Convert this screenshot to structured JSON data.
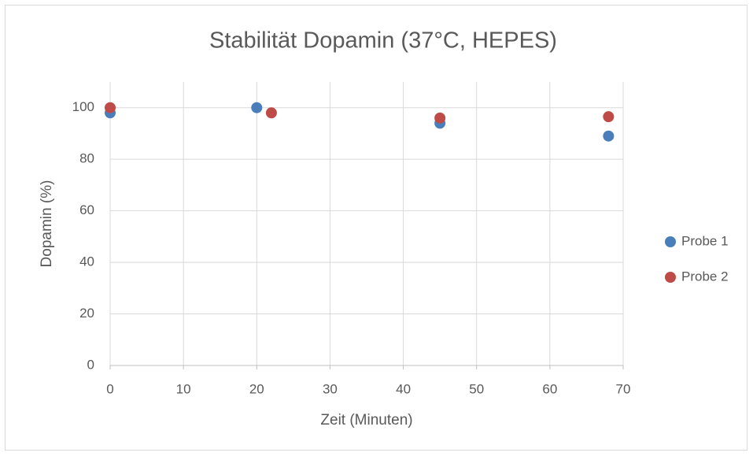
{
  "chart_data": {
    "type": "scatter",
    "title": "Stabilität Dopamin (37°C, HEPES)",
    "x_label": "Zeit (Minuten)",
    "y_label": "Dopamin (%)",
    "xlim": [
      0,
      70
    ],
    "xticks": [
      0,
      10,
      20,
      30,
      40,
      50,
      60,
      70
    ],
    "ylim": [
      0,
      110
    ],
    "yticks": [
      0,
      20,
      40,
      60,
      80,
      100
    ],
    "grid": true,
    "legend": "right",
    "series": [
      {
        "name": "Probe 1",
        "color": "#4a7ebb",
        "x": [
          0,
          20,
          45,
          68
        ],
        "values": [
          98,
          100,
          94,
          89
        ]
      },
      {
        "name": "Probe 2",
        "color": "#be4b48",
        "x": [
          0,
          22,
          45,
          68
        ],
        "values": [
          100,
          98,
          96,
          96.5
        ]
      }
    ]
  }
}
